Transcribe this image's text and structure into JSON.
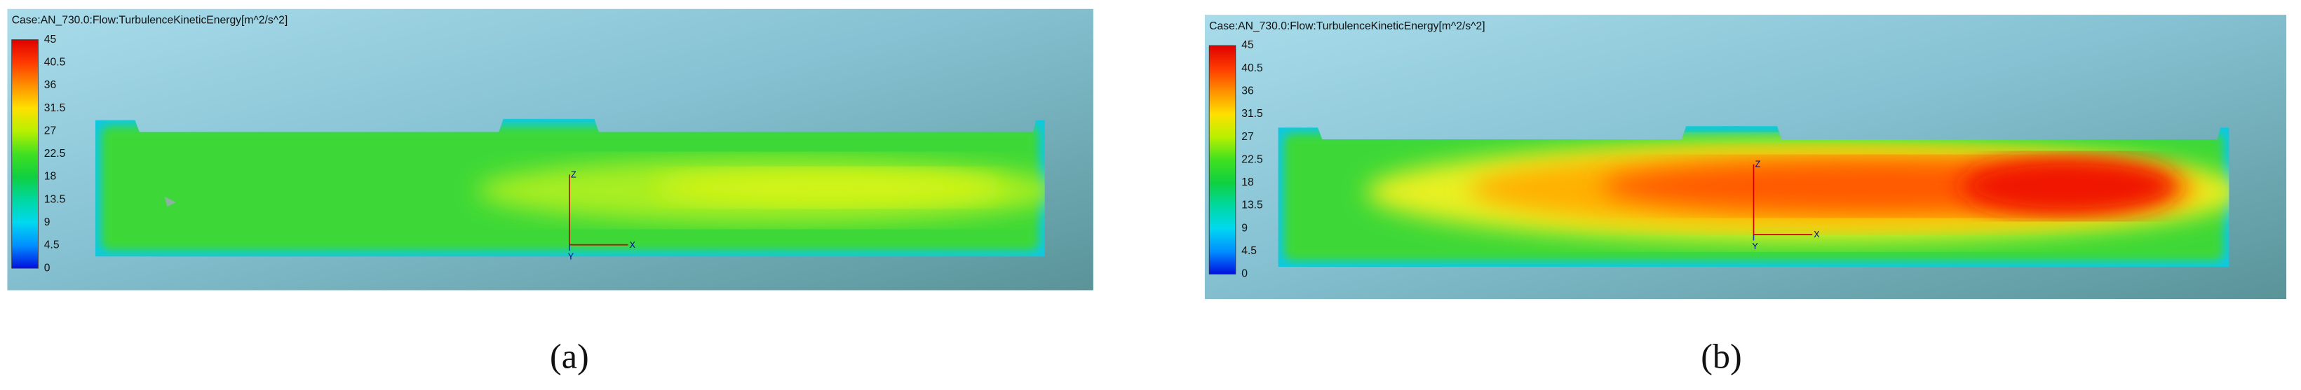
{
  "panels": [
    {
      "header": "Case:AN_730.0:Flow:TurbulenceKineticEnergy[m^2/s^2]",
      "colorbar_labels": [
        45,
        40.5,
        36,
        31.5,
        27,
        22.5,
        18,
        13.5,
        9,
        4.5,
        0
      ],
      "axes": {
        "z": "Z",
        "x": "X",
        "y": "Y"
      },
      "caption": "(a)"
    },
    {
      "header": "Case:AN_730.0:Flow:TurbulenceKineticEnergy[m^2/s^2]",
      "colorbar_labels": [
        45,
        40.5,
        36,
        31.5,
        27,
        22.5,
        18,
        13.5,
        9,
        4.5,
        0
      ],
      "axes": {
        "z": "Z",
        "x": "X",
        "y": "Y"
      },
      "caption": "(b)"
    }
  ]
}
